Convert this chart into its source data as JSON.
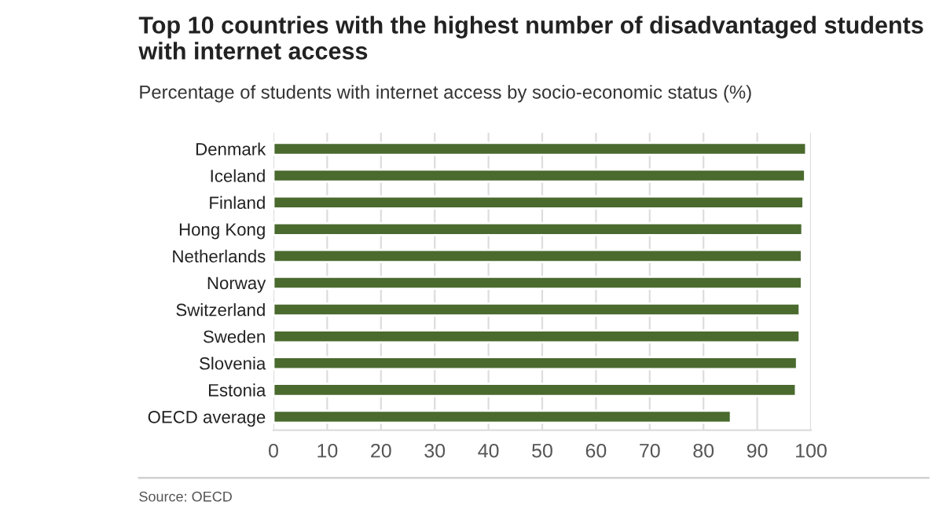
{
  "chart_data": {
    "type": "bar",
    "orientation": "horizontal",
    "title": "Top 10 countries with the highest number of disadvantaged students with internet access",
    "subtitle": "Percentage of students with internet access by socio-economic status (%)",
    "categories": [
      "Denmark",
      "Iceland",
      "Finland",
      "Hong Kong",
      "Netherlands",
      "Norway",
      "Switzerland",
      "Sweden",
      "Slovenia",
      "Estonia",
      "OECD average"
    ],
    "values": [
      99.1,
      98.9,
      98.6,
      98.4,
      98.3,
      98.3,
      97.9,
      97.9,
      97.4,
      97.2,
      85.1
    ],
    "color": "#4a6a2e",
    "xlim": [
      0,
      100
    ],
    "xticks": [
      0,
      10,
      20,
      30,
      40,
      50,
      60,
      70,
      80,
      90,
      100
    ],
    "grid": "x",
    "annotations": [
      "Source: OECD"
    ]
  }
}
